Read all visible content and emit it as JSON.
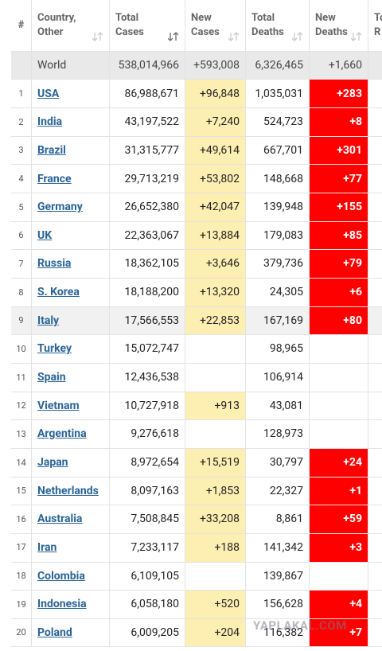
{
  "header": {
    "columns": [
      [
        "#"
      ],
      [
        "Country,",
        "Other"
      ],
      [
        "Total",
        "Cases"
      ],
      [
        "New",
        "Cases"
      ],
      [
        "Total",
        "Deaths"
      ],
      [
        "New",
        "Deaths"
      ],
      [
        "To",
        "R"
      ]
    ]
  },
  "world": [
    "World",
    "538,014,966",
    "+593,008",
    "6,326,465",
    "+1,660"
  ],
  "rows": [
    [
      "1",
      "USA",
      "86,988,671",
      "+96,848",
      "1,035,031",
      "+283"
    ],
    [
      "2",
      "India",
      "43,197,522",
      "+7,240",
      "524,723",
      "+8"
    ],
    [
      "3",
      "Brazil",
      "31,315,777",
      "+49,614",
      "667,701",
      "+301"
    ],
    [
      "4",
      "France",
      "29,713,219",
      "+53,802",
      "148,668",
      "+77"
    ],
    [
      "5",
      "Germany",
      "26,652,380",
      "+42,047",
      "139,948",
      "+155"
    ],
    [
      "6",
      "UK",
      "22,363,067",
      "+13,884",
      "179,083",
      "+85"
    ],
    [
      "7",
      "Russia",
      "18,362,105",
      "+3,646",
      "379,736",
      "+79"
    ],
    [
      "8",
      "S. Korea",
      "18,188,200",
      "+13,320",
      "24,305",
      "+6"
    ],
    [
      "9",
      "Italy",
      "17,566,553",
      "+22,853",
      "167,169",
      "+80"
    ],
    [
      "10",
      "Turkey",
      "15,072,747",
      null,
      "98,965",
      null
    ],
    [
      "11",
      "Spain",
      "12,436,538",
      null,
      "106,914",
      null
    ],
    [
      "12",
      "Vietnam",
      "10,727,918",
      "+913",
      "43,081",
      null
    ],
    [
      "13",
      "Argentina",
      "9,276,618",
      null,
      "128,973",
      null
    ],
    [
      "14",
      "Japan",
      "8,972,654",
      "+15,519",
      "30,797",
      "+24"
    ],
    [
      "15",
      "Netherlands",
      "8,097,163",
      "+1,853",
      "22,327",
      "+1"
    ],
    [
      "16",
      "Australia",
      "7,508,845",
      "+33,208",
      "8,861",
      "+59"
    ],
    [
      "17",
      "Iran",
      "7,233,117",
      "+188",
      "141,342",
      "+3"
    ],
    [
      "18",
      "Colombia",
      "6,109,105",
      null,
      "139,867",
      null
    ],
    [
      "19",
      "Indonesia",
      "6,058,180",
      "+520",
      "156,628",
      "+4"
    ],
    [
      "20",
      "Poland",
      "6,009,205",
      "+204",
      "116,382",
      "+7"
    ]
  ],
  "watermark": "YAPLAKAL.COM"
}
